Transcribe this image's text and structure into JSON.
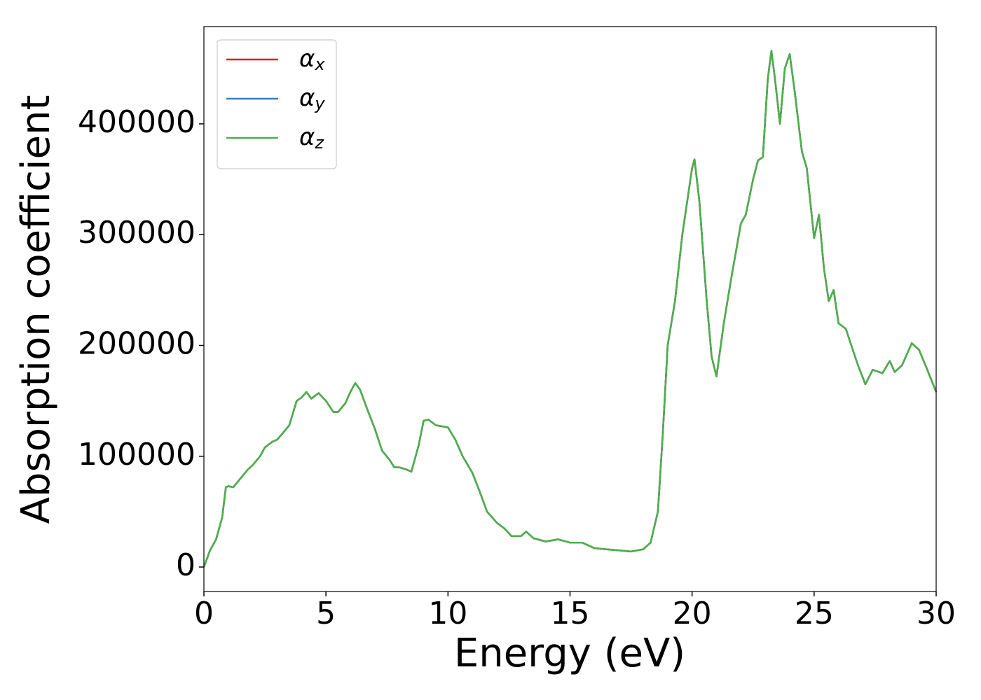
{
  "chart_data": {
    "type": "line",
    "xlabel": "Energy (eV)",
    "ylabel": "Absorption coefficient",
    "x": [
      0,
      0.25,
      0.5,
      0.75,
      0.9,
      1.0,
      1.2,
      1.5,
      1.8,
      2.0,
      2.3,
      2.5,
      2.8,
      3.0,
      3.2,
      3.5,
      3.8,
      4.0,
      4.2,
      4.4,
      4.7,
      5.0,
      5.3,
      5.5,
      5.8,
      6.0,
      6.2,
      6.4,
      6.7,
      7.0,
      7.3,
      7.6,
      7.8,
      8.0,
      8.3,
      8.5,
      8.8,
      9.0,
      9.2,
      9.5,
      10.0,
      10.3,
      10.6,
      11.0,
      11.3,
      11.6,
      12.0,
      12.3,
      12.6,
      13.0,
      13.2,
      13.5,
      14.0,
      14.5,
      15.0,
      15.5,
      16.0,
      16.5,
      17.0,
      17.5,
      18.0,
      18.3,
      18.6,
      18.8,
      19.0,
      19.3,
      19.6,
      20.0,
      20.1,
      20.3,
      20.6,
      20.8,
      21.0,
      21.3,
      21.6,
      22.0,
      22.2,
      22.5,
      22.7,
      22.9,
      23.1,
      23.25,
      23.4,
      23.6,
      23.8,
      24.0,
      24.2,
      24.5,
      24.7,
      25.0,
      25.2,
      25.4,
      25.6,
      25.8,
      26.0,
      26.3,
      26.6,
      26.8,
      27.1,
      27.4,
      27.8,
      28.1,
      28.3,
      28.6,
      29.0,
      29.3,
      29.6,
      30.0
    ],
    "series": [
      {
        "name": "αx",
        "color": "#e41a1c",
        "values": [
          0,
          15000,
          25000,
          45000,
          72000,
          73000,
          72000,
          80000,
          88000,
          92000,
          100000,
          108000,
          113000,
          115000,
          120000,
          128000,
          150000,
          153000,
          158000,
          152000,
          157000,
          150000,
          140000,
          140000,
          148000,
          158000,
          166000,
          160000,
          142000,
          125000,
          105000,
          97000,
          90000,
          90000,
          88000,
          86000,
          110000,
          132000,
          133000,
          128000,
          126000,
          115000,
          100000,
          85000,
          68000,
          50000,
          40000,
          35000,
          28000,
          28000,
          32000,
          26000,
          23000,
          25000,
          22000,
          22000,
          17000,
          16000,
          15000,
          14000,
          16000,
          22000,
          50000,
          120000,
          200000,
          240000,
          300000,
          360000,
          368000,
          330000,
          240000,
          190000,
          172000,
          220000,
          260000,
          310000,
          318000,
          350000,
          367000,
          370000,
          440000,
          466000,
          440000,
          400000,
          450000,
          463000,
          430000,
          375000,
          360000,
          297000,
          318000,
          270000,
          240000,
          250000,
          220000,
          215000,
          195000,
          182000,
          165000,
          178000,
          175000,
          186000,
          176000,
          182000,
          202000,
          196000,
          180000,
          158000
        ]
      },
      {
        "name": "αy",
        "color": "#377eb8",
        "values": [
          0,
          15000,
          25000,
          45000,
          72000,
          73000,
          72000,
          80000,
          88000,
          92000,
          100000,
          108000,
          113000,
          115000,
          120000,
          128000,
          150000,
          153000,
          158000,
          152000,
          157000,
          150000,
          140000,
          140000,
          148000,
          158000,
          166000,
          160000,
          142000,
          125000,
          105000,
          97000,
          90000,
          90000,
          88000,
          86000,
          110000,
          132000,
          133000,
          128000,
          126000,
          115000,
          100000,
          85000,
          68000,
          50000,
          40000,
          35000,
          28000,
          28000,
          32000,
          26000,
          23000,
          25000,
          22000,
          22000,
          17000,
          16000,
          15000,
          14000,
          16000,
          22000,
          50000,
          120000,
          200000,
          240000,
          300000,
          360000,
          368000,
          330000,
          240000,
          190000,
          172000,
          220000,
          260000,
          310000,
          318000,
          350000,
          367000,
          370000,
          440000,
          466000,
          440000,
          400000,
          450000,
          463000,
          430000,
          375000,
          360000,
          297000,
          318000,
          270000,
          240000,
          250000,
          220000,
          215000,
          195000,
          182000,
          165000,
          178000,
          175000,
          186000,
          176000,
          182000,
          202000,
          196000,
          180000,
          158000
        ]
      },
      {
        "name": "αz",
        "color": "#4daf4a",
        "values": [
          0,
          15000,
          25000,
          45000,
          72000,
          73000,
          72000,
          80000,
          88000,
          92000,
          100000,
          108000,
          113000,
          115000,
          120000,
          128000,
          150000,
          153000,
          158000,
          152000,
          157000,
          150000,
          140000,
          140000,
          148000,
          158000,
          166000,
          160000,
          142000,
          125000,
          105000,
          97000,
          90000,
          90000,
          88000,
          86000,
          110000,
          132000,
          133000,
          128000,
          126000,
          115000,
          100000,
          85000,
          68000,
          50000,
          40000,
          35000,
          28000,
          28000,
          32000,
          26000,
          23000,
          25000,
          22000,
          22000,
          17000,
          16000,
          15000,
          14000,
          16000,
          22000,
          50000,
          120000,
          200000,
          240000,
          300000,
          360000,
          368000,
          330000,
          240000,
          190000,
          172000,
          220000,
          260000,
          310000,
          318000,
          350000,
          367000,
          370000,
          440000,
          466000,
          440000,
          400000,
          450000,
          463000,
          430000,
          375000,
          360000,
          297000,
          318000,
          270000,
          240000,
          250000,
          220000,
          215000,
          195000,
          182000,
          165000,
          178000,
          175000,
          186000,
          176000,
          182000,
          202000,
          196000,
          180000,
          158000
        ]
      }
    ],
    "xlim": [
      0,
      30
    ],
    "xticks": [
      0,
      5,
      10,
      15,
      20,
      25,
      30
    ],
    "ylim": [
      -22100,
      487800
    ],
    "yticks": [
      0,
      100000,
      200000,
      300000,
      400000
    ],
    "legend": "upper left",
    "grid": false
  }
}
